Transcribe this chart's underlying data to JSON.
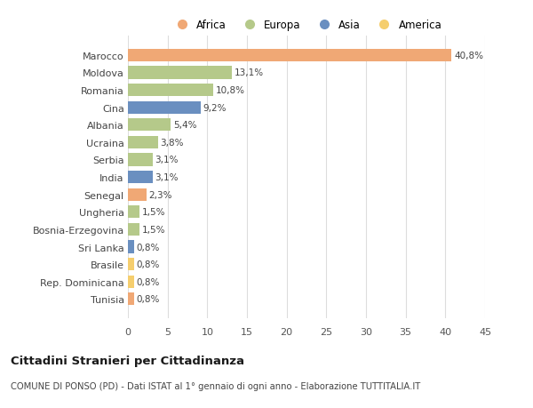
{
  "categories": [
    "Marocco",
    "Moldova",
    "Romania",
    "Cina",
    "Albania",
    "Ucraina",
    "Serbia",
    "India",
    "Senegal",
    "Ungheria",
    "Bosnia-Erzegovina",
    "Sri Lanka",
    "Brasile",
    "Rep. Dominicana",
    "Tunisia"
  ],
  "values": [
    40.8,
    13.1,
    10.8,
    9.2,
    5.4,
    3.8,
    3.1,
    3.1,
    2.3,
    1.5,
    1.5,
    0.8,
    0.8,
    0.8,
    0.8
  ],
  "labels": [
    "40,8%",
    "13,1%",
    "10,8%",
    "9,2%",
    "5,4%",
    "3,8%",
    "3,1%",
    "3,1%",
    "2,3%",
    "1,5%",
    "1,5%",
    "0,8%",
    "0,8%",
    "0,8%",
    "0,8%"
  ],
  "continents": [
    "Africa",
    "Europa",
    "Europa",
    "Asia",
    "Europa",
    "Europa",
    "Europa",
    "Asia",
    "Africa",
    "Europa",
    "Europa",
    "Asia",
    "America",
    "America",
    "Africa"
  ],
  "colors": {
    "Africa": "#F0A875",
    "Europa": "#B5C98A",
    "Asia": "#6A8FC0",
    "America": "#F5CE6E"
  },
  "legend_order": [
    "Africa",
    "Europa",
    "Asia",
    "America"
  ],
  "title": "Cittadini Stranieri per Cittadinanza",
  "subtitle": "COMUNE DI PONSO (PD) - Dati ISTAT al 1° gennaio di ogni anno - Elaborazione TUTTITALIA.IT",
  "xlim": [
    0,
    45
  ],
  "xticks": [
    0,
    5,
    10,
    15,
    20,
    25,
    30,
    35,
    40,
    45
  ],
  "bg_color": "#FFFFFF",
  "grid_color": "#DDDDDD"
}
